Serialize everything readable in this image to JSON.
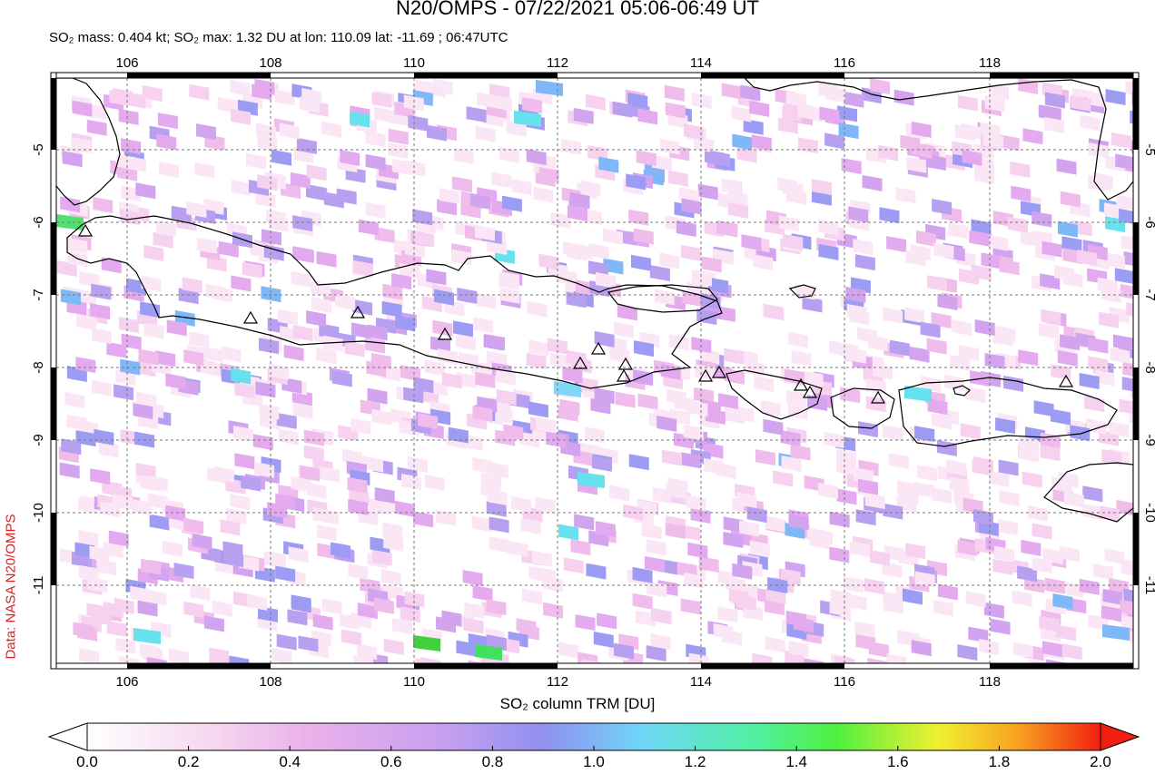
{
  "title": "N20/OMPS - 07/22/2021 05:06-06:49 UT",
  "subtitle": "SO₂ mass: 0.404 kt; SO₂ max: 1.32 DU at lon: 110.09 lat: -11.69 ; 06:47UTC",
  "side_label": "Data: NASA N20/OMPS",
  "colorbar_label": "SO₂ column TRM [DU]",
  "colorbar_ticks": [
    "0.0",
    "0.2",
    "0.4",
    "0.6",
    "0.8",
    "1.0",
    "1.2",
    "1.4",
    "1.6",
    "1.8",
    "2.0"
  ],
  "map": {
    "lon_ticks": [
      "106",
      "108",
      "110",
      "112",
      "114",
      "116",
      "118"
    ],
    "lat_ticks": [
      "-5",
      "-6",
      "-7",
      "-8",
      "-9",
      "-10",
      "-11"
    ]
  },
  "colors": {
    "coast": "#000000",
    "grid": "#777777",
    "low": "#ffffff",
    "mid": "#c8a0f0",
    "blue": "#7090f0",
    "cyan": "#60e0f0",
    "green": "#40e040"
  }
}
